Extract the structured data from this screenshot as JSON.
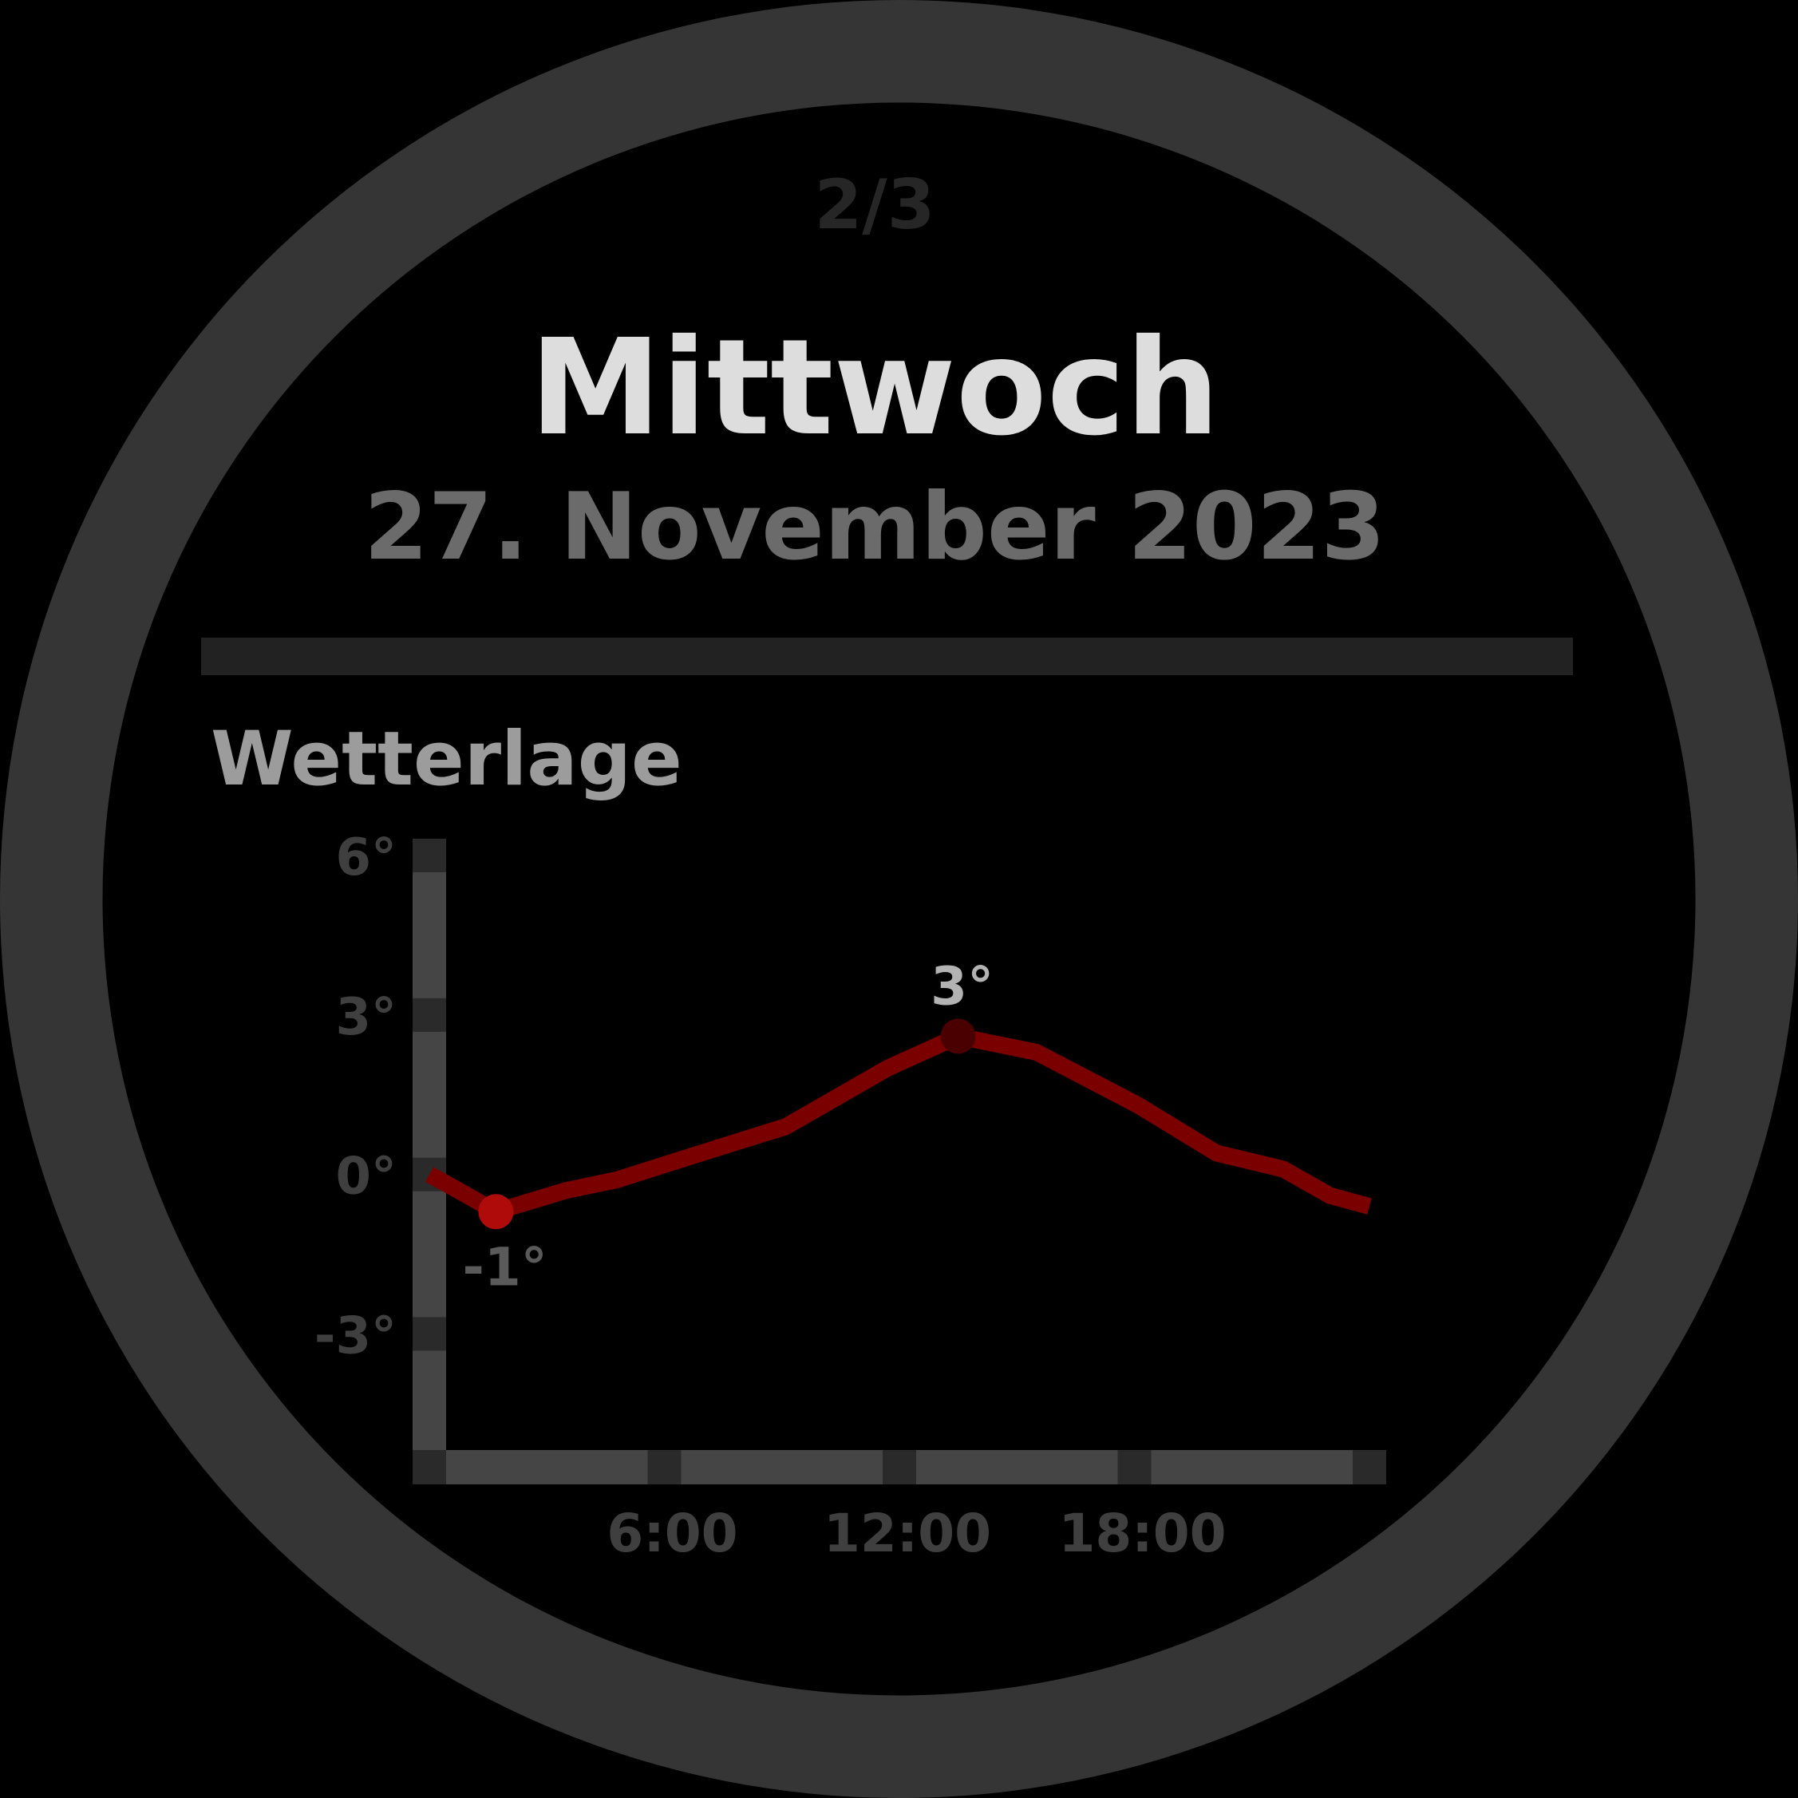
{
  "colors": {
    "bezel": "#353535",
    "screen": "#000000",
    "page_indicator": "#262626",
    "day": "#dddddd",
    "date": "#6b6b6b",
    "divider": "#222222",
    "section_title": "#9c9c9c",
    "axis": "#454545",
    "tick": "#2a2a2a",
    "tick_label": "#3f3f3f",
    "line": "#7a0000",
    "min_marker": "#b00b0b",
    "max_marker": "#4a0000",
    "max_label": "#b3b3b3",
    "min_label": "#5a5a5a"
  },
  "header": {
    "page_indicator": "2/3",
    "day": "Mittwoch",
    "date": "27. November 2023"
  },
  "section": {
    "title": "Wetterlage"
  },
  "chart_data": {
    "type": "line",
    "ylim": [
      -5.5,
      6
    ],
    "xlim": [
      0,
      24
    ],
    "y_ticks": [
      {
        "value": 6,
        "label": "6°"
      },
      {
        "value": 3,
        "label": "3°"
      },
      {
        "value": 0,
        "label": "0°"
      },
      {
        "value": -3,
        "label": "-3°"
      }
    ],
    "x_ticks": [
      {
        "value": 0,
        "label": ""
      },
      {
        "value": 6,
        "label": "6:00"
      },
      {
        "value": 12,
        "label": "12:00"
      },
      {
        "value": 18,
        "label": "18:00"
      },
      {
        "value": 24,
        "label": ""
      }
    ],
    "series": [
      {
        "x": [
          0,
          0.5,
          1.7,
          3.5,
          4.8,
          6.5,
          9.1,
          11.7,
          13.5,
          15.5,
          18.1,
          20.1,
          21.8,
          23.0,
          24.0
        ],
        "y": [
          0,
          -0.2,
          -0.7,
          -0.3,
          -0.1,
          0.3,
          0.9,
          2.0,
          2.6,
          2.3,
          1.3,
          0.4,
          0.1,
          -0.4,
          -0.6
        ]
      }
    ],
    "min_point": {
      "x": 1.7,
      "y": -0.7,
      "label": "-1°"
    },
    "max_point": {
      "x": 13.5,
      "y": 2.6,
      "label": "3°"
    }
  }
}
